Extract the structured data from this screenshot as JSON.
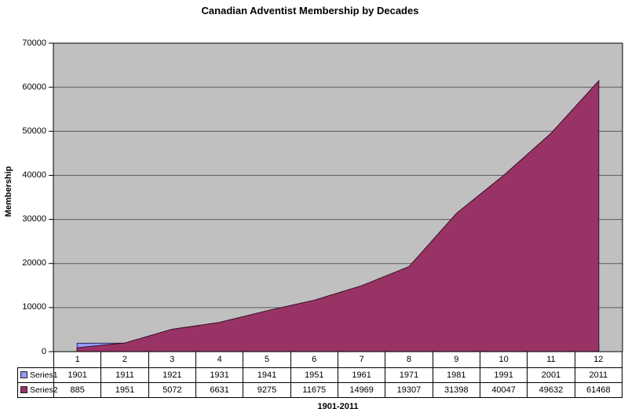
{
  "page": {
    "background": "#FFFFFF"
  },
  "chart_data": {
    "type": "area",
    "title": "Canadian Adventist Membership by Decades",
    "xlabel": "1901-2011",
    "ylabel": "Membership",
    "ylim": [
      0,
      70000
    ],
    "yticks": [
      0,
      10000,
      20000,
      30000,
      40000,
      50000,
      60000,
      70000
    ],
    "grid": true,
    "legend_position": "data-table-left",
    "plot_bg": "#C0C0C0",
    "gridline_color": "#595959",
    "axis_color": "#000000",
    "categories": [
      "1",
      "2",
      "3",
      "4",
      "5",
      "6",
      "7",
      "8",
      "9",
      "10",
      "11",
      "12"
    ],
    "series": [
      {
        "name": "Series1",
        "fill": "#9999FF",
        "border": "#26265E",
        "values": [
          1901,
          1911,
          1921,
          1931,
          1941,
          1951,
          1961,
          1971,
          1981,
          1991,
          2001,
          2011
        ]
      },
      {
        "name": "Series2",
        "fill": "#993366",
        "border": "#330D22",
        "values": [
          885,
          1951,
          5072,
          6631,
          9275,
          11675,
          14969,
          19307,
          31398,
          40047,
          49632,
          61468
        ]
      }
    ]
  }
}
